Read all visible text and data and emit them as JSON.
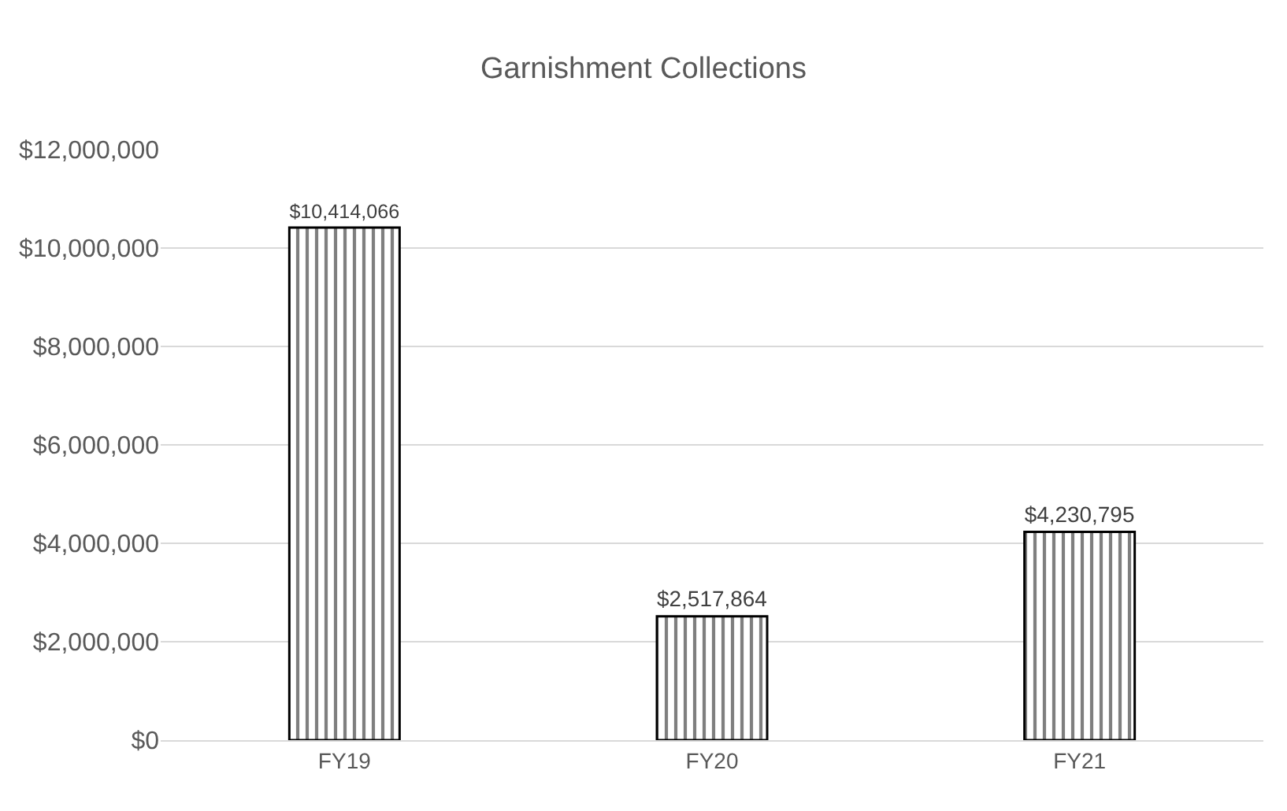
{
  "chart_data": {
    "type": "bar",
    "title": "Garnishment Collections",
    "categories": [
      "FY19",
      "FY20",
      "FY21"
    ],
    "values": [
      10414066,
      2517864,
      4230795
    ],
    "value_labels": [
      "$10,414,066",
      "$2,517,864",
      "$4,230,795"
    ],
    "color": "#000000",
    "ylim": [
      0,
      12000000
    ],
    "yticks": [
      {
        "value": 0,
        "label": "$0"
      },
      {
        "value": 2000000,
        "label": "$2,000,000"
      },
      {
        "value": 4000000,
        "label": "$4,000,000"
      },
      {
        "value": 6000000,
        "label": "$6,000,000"
      },
      {
        "value": 8000000,
        "label": "$8,000,000"
      },
      {
        "value": 10000000,
        "label": "$10,000,000"
      },
      {
        "value": 12000000,
        "label": "$12,000,000"
      }
    ],
    "grid": "y"
  }
}
